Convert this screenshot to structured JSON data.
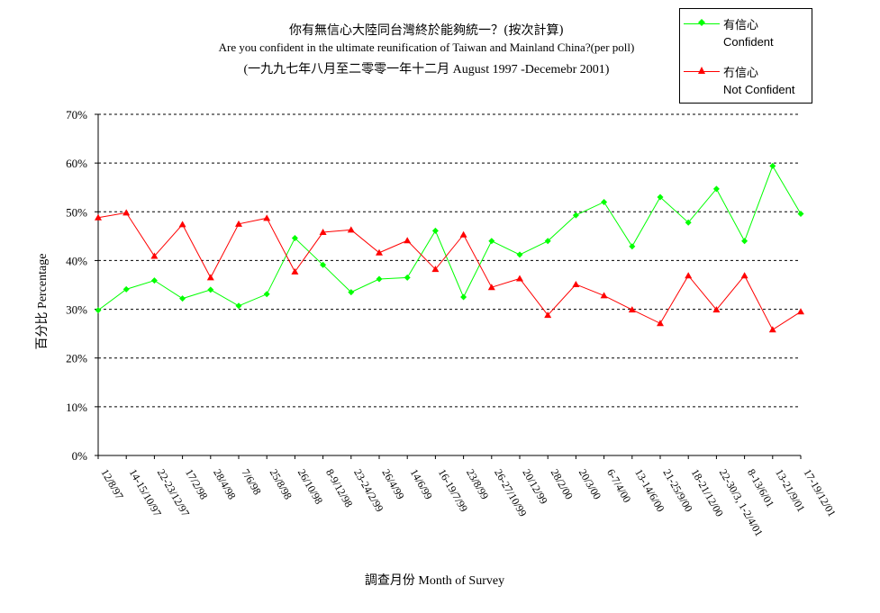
{
  "chart_data": {
    "type": "line",
    "title": "你有無信心大陸同台灣終於能夠統一？(按次計算)",
    "subtitle": "Are you confident in the ultimate reunification of Taiwan and Mainland China?(per poll)",
    "subtitle2": "(一九九七年八月至二零零一年十二月 August 1997 -Decemebr 2001)",
    "xlabel": "調查月份 Month of Survey",
    "ylabel": "百分比 Percentage",
    "ylim": [
      0,
      70
    ],
    "yticks": [
      "0%",
      "10%",
      "20%",
      "30%",
      "40%",
      "50%",
      "60%",
      "70%"
    ],
    "ytick_values": [
      0,
      10,
      20,
      30,
      40,
      50,
      60,
      70
    ],
    "grid": "horizontal dashed",
    "legend_position": "top-right",
    "categories": [
      "12/8/97",
      "14-15/10/97",
      "22-23/12/97",
      "17/2/98",
      "28/4/98",
      "7/6/98",
      "25/8/98",
      "26/10/98",
      "8-9/12/98",
      "23-24/2/99",
      "26/4/99",
      "14/6/99",
      "16-19/7/99",
      "23/8/99",
      "26-27/10/99",
      "20/12/99",
      "28/2/00",
      "20/3/00",
      "6-7/4/00",
      "13-14/6/00",
      "21-25/9/00",
      "18-21/12/00",
      "22-30/3, 1-2/4/01",
      "8-13/6/01",
      "13-21/9/01",
      "17-19/12/01"
    ],
    "series": [
      {
        "name": "有信心",
        "name_en": "Confident",
        "color": "#00ff00",
        "marker": "diamond",
        "values": [
          29.8,
          34.1,
          35.9,
          32.2,
          34.0,
          30.7,
          33.1,
          44.6,
          39.1,
          33.5,
          36.2,
          36.5,
          46.1,
          32.5,
          44.0,
          41.2,
          44.0,
          49.3,
          52.0,
          42.9,
          53.0,
          47.8,
          54.7,
          44.0,
          59.4,
          49.6
        ]
      },
      {
        "name": "冇信心",
        "name_en": "Not Confident",
        "color": "#ff0000",
        "marker": "triangle",
        "values": [
          48.8,
          49.8,
          40.9,
          47.4,
          36.5,
          47.5,
          48.7,
          37.7,
          45.8,
          46.3,
          41.6,
          44.1,
          38.2,
          45.3,
          34.5,
          36.3,
          28.8,
          35.1,
          32.8,
          29.9,
          27.1,
          36.9,
          29.9,
          36.9,
          25.8,
          29.5
        ]
      }
    ]
  }
}
